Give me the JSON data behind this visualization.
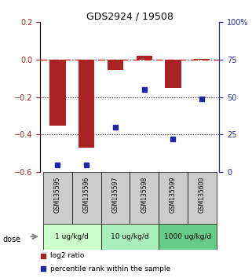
{
  "title": "GDS2924 / 19508",
  "samples": [
    "GSM135595",
    "GSM135596",
    "GSM135597",
    "GSM135598",
    "GSM135599",
    "GSM135600"
  ],
  "log2_ratio": [
    -0.35,
    -0.47,
    -0.055,
    0.022,
    -0.15,
    0.005
  ],
  "percentile_rank": [
    5,
    5,
    30,
    55,
    22,
    49
  ],
  "bar_color": "#aa2222",
  "dot_color": "#2222aa",
  "left_ylim": [
    -0.6,
    0.2
  ],
  "right_ylim": [
    0,
    100
  ],
  "left_yticks": [
    -0.6,
    -0.4,
    -0.2,
    0.0,
    0.2
  ],
  "right_yticks": [
    0,
    25,
    50,
    75,
    100
  ],
  "right_yticklabels": [
    "0",
    "25",
    "50",
    "75",
    "100%"
  ],
  "dose_groups": [
    {
      "label": "1 ug/kg/d",
      "samples": [
        0,
        1
      ],
      "color": "#ccffcc"
    },
    {
      "label": "10 ug/kg/d",
      "samples": [
        2,
        3
      ],
      "color": "#aaeebb"
    },
    {
      "label": "1000 ug/kg/d",
      "samples": [
        4,
        5
      ],
      "color": "#66cc88"
    }
  ],
  "dose_label": "dose",
  "legend_log2": "log2 ratio",
  "legend_pct": "percentile rank within the sample",
  "hline_zero_color": "#cc2222",
  "hline_zero_style": "-.",
  "hline_dotted_color": "black",
  "hline_dotted_style": ":"
}
